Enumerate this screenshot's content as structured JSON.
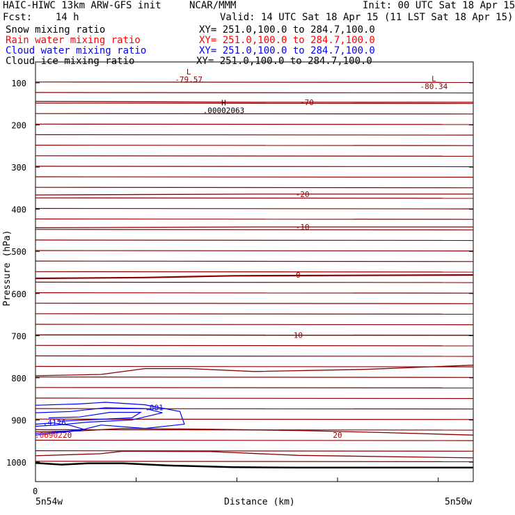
{
  "header": {
    "model": "HAIC-HIWC 13km ARW-GFS init",
    "org": "NCAR/MMM",
    "init": "Init: 00 UTC Sat 18 Apr 15",
    "fcst": "Fcst:    14 h",
    "valid": "Valid: 14 UTC Sat 18 Apr 15 (11 LST Sat 18 Apr 15)"
  },
  "fields": [
    {
      "name": "Snow mixing ratio",
      "xy": "XY= 251.0,100.0 to 284.7,100.0",
      "color": "#000000"
    },
    {
      "name": "Rain water mixing ratio",
      "xy": "XY= 251.0,100.0 to 284.7,100.0",
      "color": "#ff0000"
    },
    {
      "name": "Cloud water mixing ratio",
      "xy": "XY= 251.0,100.0 to 284.7,100.0",
      "color": "#0000ff"
    },
    {
      "name": "Cloud ice mixing ratio",
      "xy": "XY= 251.0,100.0 to 284.7,100.0",
      "color": "#000000"
    }
  ],
  "colors": {
    "temperature": "#8b0000",
    "cloud_water": "#0000ff",
    "rain": "#ff0000",
    "ground": "#000000",
    "frame": "#000000"
  },
  "chart_data": {
    "type": "line",
    "xlabel": "Distance (km)",
    "ylabel": "Pressure (hPa)",
    "x_start_tick": "0",
    "x_endpoints": [
      "5n54w",
      "5n50w"
    ],
    "yticks": [
      100,
      200,
      300,
      400,
      500,
      600,
      700,
      800,
      900,
      1000
    ],
    "ylim": [
      50,
      1050
    ],
    "xlim": [
      0,
      100
    ],
    "temperature_contours": [
      {
        "label": "-70",
        "label_x": 62,
        "points": [
          [
            0,
            144
          ],
          [
            50,
            146
          ],
          [
            100,
            146
          ]
        ]
      },
      {
        "label": "-20",
        "label_x": 61,
        "points": [
          [
            0,
            366
          ],
          [
            50,
            364
          ],
          [
            100,
            364
          ]
        ]
      },
      {
        "label": "-10",
        "label_x": 61,
        "points": [
          [
            0,
            444
          ],
          [
            50,
            442
          ],
          [
            100,
            442
          ]
        ]
      },
      {
        "label": "0",
        "label_x": 60,
        "points": [
          [
            0,
            564
          ],
          [
            25,
            562
          ],
          [
            45,
            558
          ],
          [
            100,
            556
          ]
        ]
      },
      {
        "label": "10",
        "label_x": 60,
        "points": [
          [
            0,
            698
          ],
          [
            50,
            699
          ],
          [
            100,
            699
          ]
        ]
      },
      {
        "label": "20",
        "label_x": 69,
        "points": [
          [
            0,
            928
          ],
          [
            10,
            926
          ],
          [
            20,
            920
          ],
          [
            40,
            922
          ],
          [
            60,
            925
          ],
          [
            80,
            930
          ],
          [
            100,
            936
          ]
        ]
      }
    ],
    "extrema": [
      {
        "type": "L",
        "value": "-79.57",
        "x": 35,
        "p": 80
      },
      {
        "type": "L",
        "value": "-80.34",
        "x": 91,
        "p": 97
      },
      {
        "type": "H",
        "value": ".00002063",
        "x": 43,
        "p": 154
      }
    ],
    "cloud_water": {
      "contour_labels": [
        ".001",
        ".4126"
      ],
      "label_positions": [
        [
          25,
          870
        ],
        [
          2,
          906
        ]
      ],
      "max_label": ".4126"
    },
    "rain_label": ".06902",
    "small_label": "20"
  }
}
